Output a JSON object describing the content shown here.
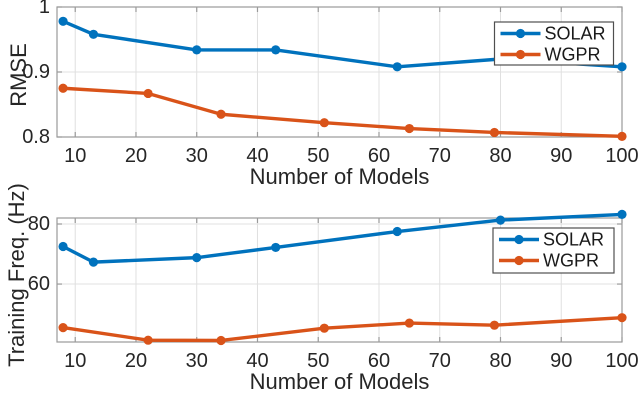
{
  "theme": {
    "background": "#ffffff",
    "grid_color": "#e0e0e0",
    "axis_color": "#9a9a9a",
    "text_color": "#262626",
    "legend_border_color": "#4f4f4f",
    "legend_background": "#ffffff",
    "solar_color": "#0072BD",
    "wgpr_color": "#D95319"
  },
  "chart_data": [
    {
      "type": "line",
      "title": "",
      "xlabel": "Number of Models",
      "ylabel": "RMSE",
      "xlim": [
        7,
        100
      ],
      "ylim": [
        0.8,
        1.0
      ],
      "xticks": [
        10,
        20,
        30,
        40,
        50,
        60,
        70,
        80,
        90,
        100
      ],
      "yticks": [
        {
          "v": 0.8,
          "label": "0.8"
        },
        {
          "v": 0.9,
          "label": "0.9"
        },
        {
          "v": 1.0,
          "label": "1"
        }
      ],
      "grid": true,
      "legend": {
        "position": "top-right",
        "entries": [
          "SOLAR",
          "WGPR"
        ]
      },
      "series": [
        {
          "name": "SOLAR",
          "color": "#0072BD",
          "x": [
            8,
            13,
            30,
            43,
            63,
            80,
            100
          ],
          "y": [
            0.978,
            0.958,
            0.934,
            0.934,
            0.908,
            0.92,
            0.908
          ]
        },
        {
          "name": "WGPR",
          "color": "#D95319",
          "x": [
            8,
            22,
            34,
            51,
            65,
            79,
            100
          ],
          "y": [
            0.875,
            0.867,
            0.835,
            0.822,
            0.813,
            0.807,
            0.801
          ]
        }
      ]
    },
    {
      "type": "line",
      "title": "",
      "xlabel": "Number of Models",
      "ylabel": "Training Freq. (Hz)",
      "xlim": [
        7,
        100
      ],
      "ylim": [
        40.7,
        82
      ],
      "xticks": [
        10,
        20,
        30,
        40,
        50,
        60,
        70,
        80,
        90,
        100
      ],
      "yticks": [
        {
          "v": 60,
          "label": "60"
        },
        {
          "v": 80,
          "label": "80"
        }
      ],
      "grid": true,
      "legend": {
        "position": "top-right",
        "entries": [
          "SOLAR",
          "WGPR"
        ]
      },
      "series": [
        {
          "name": "SOLAR",
          "color": "#0072BD",
          "x": [
            8,
            13,
            30,
            43,
            63,
            80,
            100
          ],
          "y": [
            72.5,
            67.3,
            68.8,
            72.2,
            77.5,
            81.3,
            83.2
          ]
        },
        {
          "name": "WGPR",
          "color": "#D95319",
          "x": [
            8,
            22,
            34,
            51,
            65,
            79,
            100
          ],
          "y": [
            45.5,
            41.3,
            41.2,
            45.3,
            47.0,
            46.3,
            48.8
          ]
        }
      ]
    }
  ]
}
